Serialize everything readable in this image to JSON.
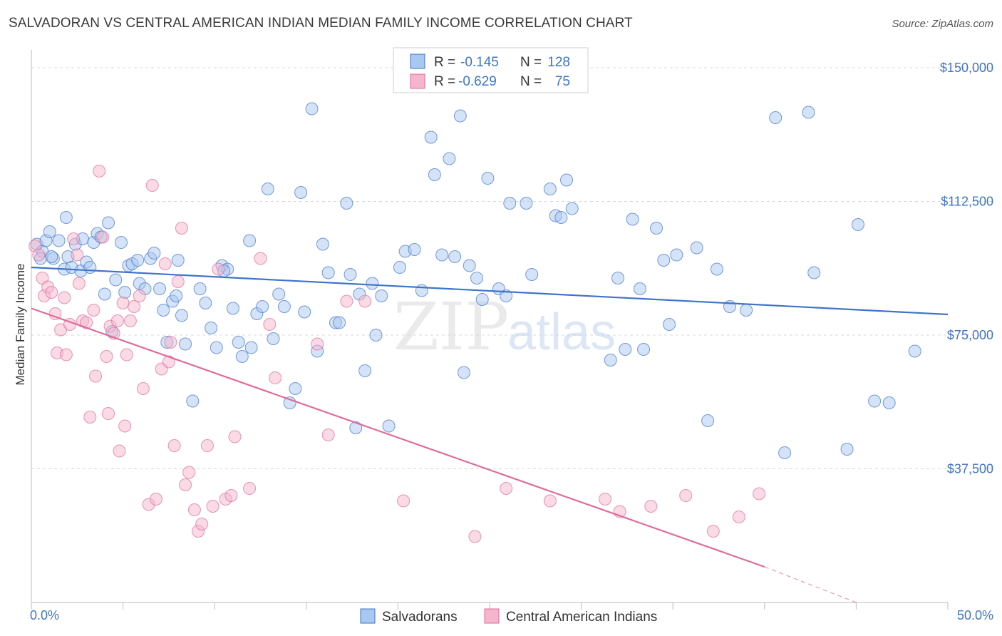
{
  "title": "SALVADORAN VS CENTRAL AMERICAN INDIAN MEDIAN FAMILY INCOME CORRELATION CHART",
  "source": "Source: ZipAtlas.com",
  "watermark": {
    "zip": "ZIP",
    "atlas": "atlas"
  },
  "colors": {
    "blue": "#3f74c9",
    "blue_fill": "#a9c8f0",
    "pink": "#e06b9a",
    "pink_fill": "#f4b6cc",
    "grid": "#d8d8d8"
  },
  "legend": {
    "rows": [
      {
        "r_label": "R =",
        "r_value": "-0.145",
        "n_label": "N =",
        "n_value": "128"
      },
      {
        "r_label": "R =",
        "r_value": "-0.629",
        "n_label": "N =",
        "n_value": "75"
      }
    ]
  },
  "bottom_legend": [
    "Salvadorans",
    "Central American Indians"
  ],
  "chart_data": {
    "type": "scatter",
    "title": "SALVADORAN VS CENTRAL AMERICAN INDIAN MEDIAN FAMILY INCOME CORRELATION CHART",
    "xlabel": "",
    "ylabel": "Median Family Income",
    "xlim": [
      0,
      50
    ],
    "ylim": [
      0,
      155000
    ],
    "x_tick_labels": [
      "0.0%",
      "50.0%"
    ],
    "y_ticks": [
      37500,
      75000,
      112500,
      150000
    ],
    "y_tick_labels": [
      "$37,500",
      "$75,000",
      "$112,500",
      "$150,000"
    ],
    "grid": true,
    "legend_position": "top-center",
    "series": [
      {
        "name": "Salvadorans",
        "color": "#3f74c9",
        "trend": {
          "x": [
            0,
            50
          ],
          "y": [
            94000,
            80800
          ]
        },
        "points": [
          [
            0.3,
            100500
          ],
          [
            0.6,
            98500
          ],
          [
            0.8,
            101500
          ],
          [
            1.0,
            104000
          ],
          [
            1.2,
            96500
          ],
          [
            1.5,
            101500
          ],
          [
            1.8,
            93500
          ],
          [
            1.9,
            108000
          ],
          [
            2.2,
            94000
          ],
          [
            2.4,
            100500
          ],
          [
            2.7,
            93000
          ],
          [
            2.8,
            102000
          ],
          [
            3.0,
            95500
          ],
          [
            3.2,
            94000
          ],
          [
            3.4,
            101000
          ],
          [
            3.6,
            103500
          ],
          [
            3.8,
            102500
          ],
          [
            4.0,
            86500
          ],
          [
            4.2,
            106500
          ],
          [
            4.4,
            76000
          ],
          [
            4.6,
            90500
          ],
          [
            4.9,
            101000
          ],
          [
            5.1,
            87000
          ],
          [
            5.3,
            94500
          ],
          [
            5.5,
            95000
          ],
          [
            5.8,
            96000
          ],
          [
            5.9,
            89500
          ],
          [
            6.2,
            88000
          ],
          [
            6.5,
            96500
          ],
          [
            6.7,
            98000
          ],
          [
            7.0,
            88000
          ],
          [
            7.2,
            82000
          ],
          [
            7.4,
            73000
          ],
          [
            7.7,
            84500
          ],
          [
            8.0,
            96000
          ],
          [
            8.2,
            80500
          ],
          [
            8.4,
            72500
          ],
          [
            8.8,
            56500
          ],
          [
            9.2,
            88000
          ],
          [
            9.5,
            84000
          ],
          [
            9.8,
            77000
          ],
          [
            10.1,
            71500
          ],
          [
            10.4,
            94500
          ],
          [
            10.7,
            93500
          ],
          [
            11.0,
            82500
          ],
          [
            11.3,
            73000
          ],
          [
            11.5,
            69000
          ],
          [
            11.9,
            101500
          ],
          [
            12.0,
            71500
          ],
          [
            12.3,
            81000
          ],
          [
            12.6,
            83000
          ],
          [
            12.9,
            116000
          ],
          [
            13.2,
            74000
          ],
          [
            13.5,
            86500
          ],
          [
            13.8,
            83000
          ],
          [
            14.1,
            56000
          ],
          [
            14.4,
            60000
          ],
          [
            14.7,
            115000
          ],
          [
            14.9,
            81500
          ],
          [
            15.3,
            138500
          ],
          [
            15.6,
            70500
          ],
          [
            15.9,
            100500
          ],
          [
            16.2,
            92500
          ],
          [
            16.6,
            78500
          ],
          [
            16.8,
            78500
          ],
          [
            17.2,
            112000
          ],
          [
            17.4,
            92000
          ],
          [
            17.7,
            49000
          ],
          [
            17.9,
            86500
          ],
          [
            18.2,
            65000
          ],
          [
            18.6,
            89500
          ],
          [
            18.8,
            75000
          ],
          [
            19.1,
            86000
          ],
          [
            19.5,
            49500
          ],
          [
            20.1,
            94000
          ],
          [
            20.4,
            98500
          ],
          [
            20.9,
            99000
          ],
          [
            21.3,
            87500
          ],
          [
            21.8,
            130500
          ],
          [
            22.0,
            120000
          ],
          [
            22.4,
            97500
          ],
          [
            22.8,
            124500
          ],
          [
            23.1,
            97000
          ],
          [
            23.4,
            136500
          ],
          [
            23.6,
            64500
          ],
          [
            23.9,
            94500
          ],
          [
            24.3,
            91000
          ],
          [
            24.6,
            85000
          ],
          [
            24.9,
            119000
          ],
          [
            25.5,
            88000
          ],
          [
            25.9,
            86000
          ],
          [
            26.1,
            112000
          ],
          [
            27.0,
            112000
          ],
          [
            27.3,
            92000
          ],
          [
            28.3,
            116000
          ],
          [
            28.6,
            108500
          ],
          [
            28.9,
            108000
          ],
          [
            29.2,
            118500
          ],
          [
            29.5,
            110500
          ],
          [
            31.6,
            68000
          ],
          [
            32.0,
            91000
          ],
          [
            32.4,
            71000
          ],
          [
            32.8,
            107500
          ],
          [
            33.2,
            88000
          ],
          [
            33.4,
            71000
          ],
          [
            34.1,
            105000
          ],
          [
            34.5,
            96000
          ],
          [
            34.8,
            78000
          ],
          [
            35.2,
            97500
          ],
          [
            36.3,
            99500
          ],
          [
            36.9,
            51000
          ],
          [
            37.4,
            93500
          ],
          [
            38.1,
            83000
          ],
          [
            39.0,
            82000
          ],
          [
            40.6,
            136000
          ],
          [
            41.1,
            42000
          ],
          [
            42.7,
            92500
          ],
          [
            42.4,
            137500
          ],
          [
            44.5,
            43000
          ],
          [
            45.1,
            106000
          ],
          [
            46.0,
            56500
          ],
          [
            46.8,
            56000
          ],
          [
            48.2,
            70500
          ],
          [
            0.5,
            96500
          ],
          [
            1.1,
            97000
          ],
          [
            2.0,
            97000
          ],
          [
            7.9,
            86000
          ],
          [
            10.5,
            93000
          ]
        ]
      },
      {
        "name": "Central American Indians",
        "color": "#e06b9a",
        "trend": {
          "x": [
            0,
            40
          ],
          "y": [
            82500,
            10000
          ]
        },
        "trend_dashed": {
          "x": [
            40,
            45
          ],
          "y": [
            10000,
            0
          ]
        },
        "points": [
          [
            0.2,
            100000
          ],
          [
            0.4,
            97500
          ],
          [
            0.6,
            91000
          ],
          [
            0.7,
            86000
          ],
          [
            0.9,
            88500
          ],
          [
            1.1,
            87000
          ],
          [
            1.3,
            81000
          ],
          [
            1.4,
            70000
          ],
          [
            1.6,
            76500
          ],
          [
            1.8,
            85500
          ],
          [
            1.9,
            69500
          ],
          [
            2.1,
            78000
          ],
          [
            2.3,
            102000
          ],
          [
            2.5,
            97500
          ],
          [
            2.6,
            89500
          ],
          [
            2.8,
            79000
          ],
          [
            3.0,
            78500
          ],
          [
            3.2,
            52000
          ],
          [
            3.4,
            82000
          ],
          [
            3.5,
            63500
          ],
          [
            3.7,
            121000
          ],
          [
            3.9,
            102500
          ],
          [
            4.1,
            69000
          ],
          [
            4.3,
            77500
          ],
          [
            4.5,
            75500
          ],
          [
            4.7,
            79000
          ],
          [
            4.8,
            42500
          ],
          [
            5.0,
            84000
          ],
          [
            5.2,
            69500
          ],
          [
            5.4,
            79000
          ],
          [
            5.6,
            83000
          ],
          [
            5.9,
            86000
          ],
          [
            6.1,
            60000
          ],
          [
            6.4,
            27500
          ],
          [
            6.6,
            117000
          ],
          [
            6.8,
            29000
          ],
          [
            7.1,
            65500
          ],
          [
            7.3,
            95000
          ],
          [
            7.6,
            73000
          ],
          [
            7.8,
            44000
          ],
          [
            8.0,
            90000
          ],
          [
            8.2,
            105000
          ],
          [
            8.4,
            33000
          ],
          [
            8.6,
            36500
          ],
          [
            8.9,
            26000
          ],
          [
            9.1,
            20000
          ],
          [
            9.3,
            22000
          ],
          [
            9.6,
            44000
          ],
          [
            9.9,
            27000
          ],
          [
            10.2,
            93500
          ],
          [
            10.6,
            29000
          ],
          [
            10.9,
            30000
          ],
          [
            11.1,
            46500
          ],
          [
            11.9,
            32000
          ],
          [
            12.5,
            96500
          ],
          [
            13.0,
            78000
          ],
          [
            13.3,
            63000
          ],
          [
            15.6,
            72500
          ],
          [
            16.2,
            47000
          ],
          [
            17.2,
            84500
          ],
          [
            18.2,
            84500
          ],
          [
            20.3,
            28500
          ],
          [
            24.2,
            18500
          ],
          [
            25.9,
            32000
          ],
          [
            28.3,
            28500
          ],
          [
            31.3,
            29000
          ],
          [
            32.1,
            25500
          ],
          [
            33.8,
            27000
          ],
          [
            35.7,
            30000
          ],
          [
            37.2,
            20000
          ],
          [
            38.6,
            24000
          ],
          [
            39.7,
            30500
          ],
          [
            4.2,
            53000
          ],
          [
            5.1,
            49500
          ],
          [
            7.5,
            67500
          ]
        ]
      }
    ]
  }
}
